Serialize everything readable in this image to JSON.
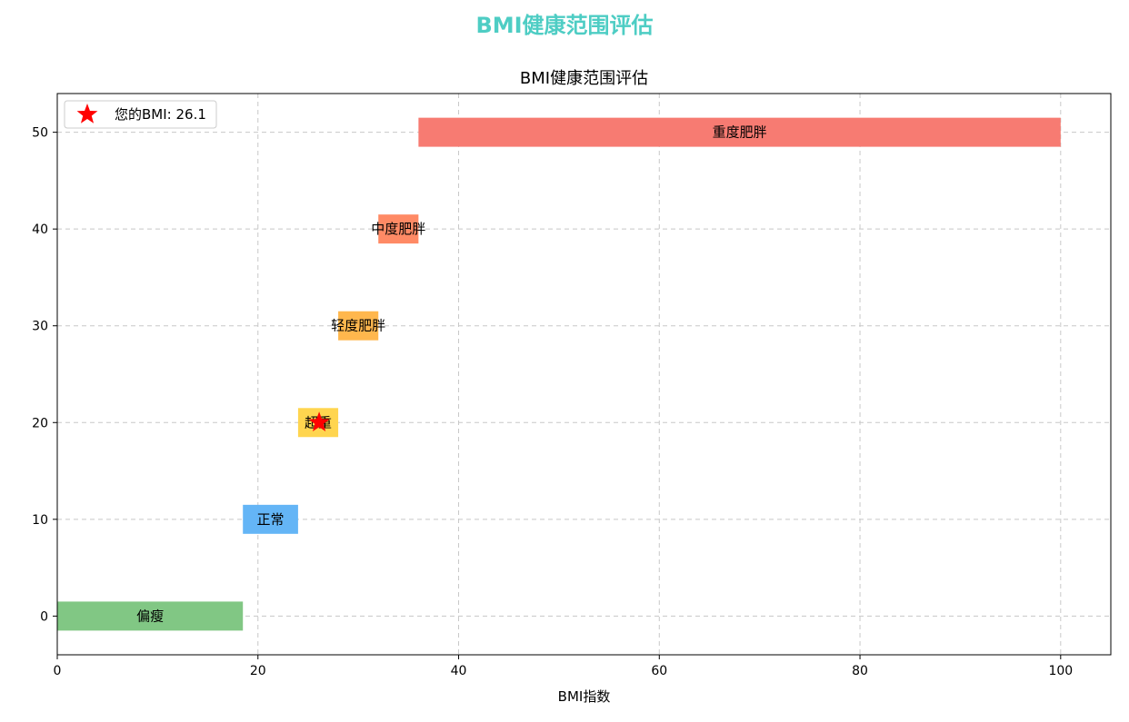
{
  "page": {
    "title": "BMI健康范围评估"
  },
  "chart_data": {
    "type": "bar",
    "orientation": "horizontal",
    "title": "BMI健康范围评估",
    "xlabel": "BMI指数",
    "ylabel": "",
    "xlim": [
      0,
      105
    ],
    "ylim": [
      -4,
      54
    ],
    "xticks": [
      0,
      20,
      40,
      60,
      80,
      100
    ],
    "yticks": [
      0,
      10,
      20,
      30,
      40,
      50
    ],
    "grid": true,
    "legend_position": "top-left",
    "bar_height": 3,
    "categories": [
      {
        "label": "偏瘦",
        "start": 0,
        "end": 18.5,
        "y": 0,
        "color": "#81c784"
      },
      {
        "label": "正常",
        "start": 18.5,
        "end": 24,
        "y": 10,
        "color": "#64b5f6"
      },
      {
        "label": "超重",
        "start": 24,
        "end": 28,
        "y": 20,
        "color": "#ffd54f"
      },
      {
        "label": "轻度肥胖",
        "start": 28,
        "end": 32,
        "y": 30,
        "color": "#ffb74d"
      },
      {
        "label": "中度肥胖",
        "start": 32,
        "end": 36,
        "y": 40,
        "color": "#ff8a65"
      },
      {
        "label": "重度肥胖",
        "start": 36,
        "end": 100,
        "y": 50,
        "color": "#f77b72"
      }
    ],
    "marker": {
      "label": "您的BMI: 26.1",
      "x": 26.1,
      "y": 20,
      "color": "#ff0000",
      "shape": "star"
    }
  }
}
